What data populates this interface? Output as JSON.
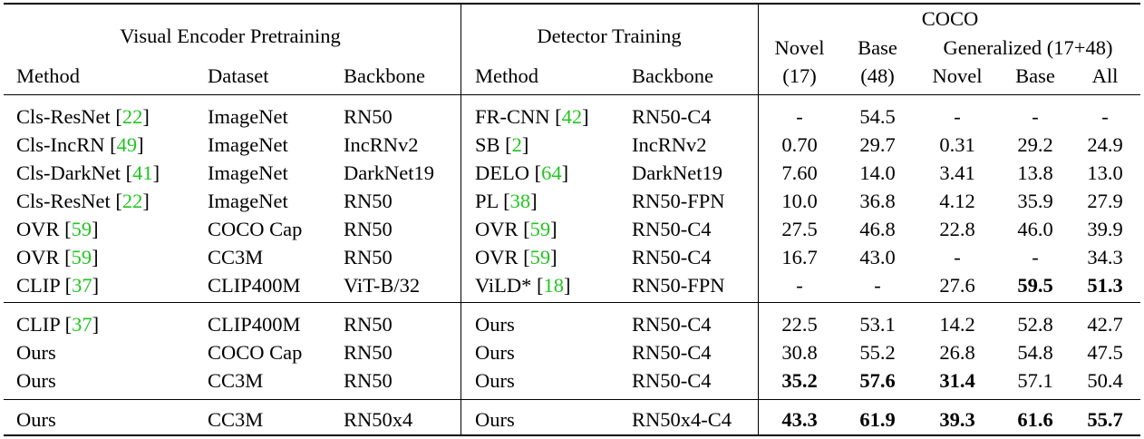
{
  "groups": {
    "pretrain": "Visual Encoder Pretraining",
    "detector": "Detector Training",
    "coco": "COCO",
    "generalized": "Generalized (17+48)"
  },
  "columns": {
    "method": "Method",
    "dataset": "Dataset",
    "backbone": "Backbone",
    "det_method": "Method",
    "det_backbone": "Backbone",
    "novel_top": "Novel",
    "novel_bottom": "(17)",
    "base_top": "Base",
    "base_bottom": "(48)",
    "gen_novel": "Novel",
    "gen_base": "Base",
    "gen_all": "All"
  },
  "rows": [
    {
      "method": "Cls-ResNet",
      "method_cite": "22",
      "dataset": "ImageNet",
      "backbone": "RN50",
      "det_method": "FR-CNN",
      "det_cite": "42",
      "det_backbone": "RN50-C4",
      "novel": "-",
      "base": "54.5",
      "g_novel": "-",
      "g_base": "-",
      "g_all": "-"
    },
    {
      "method": "Cls-IncRN",
      "method_cite": "49",
      "dataset": "ImageNet",
      "backbone": "IncRNv2",
      "det_method": "SB",
      "det_cite": "2",
      "det_backbone": "IncRNv2",
      "novel": "0.70",
      "base": "29.7",
      "g_novel": "0.31",
      "g_base": "29.2",
      "g_all": "24.9"
    },
    {
      "method": "Cls-DarkNet",
      "method_cite": "41",
      "dataset": "ImageNet",
      "backbone": "DarkNet19",
      "det_method": "DELO",
      "det_cite": "64",
      "det_backbone": "DarkNet19",
      "novel": "7.60",
      "base": "14.0",
      "g_novel": "3.41",
      "g_base": "13.8",
      "g_all": "13.0"
    },
    {
      "method": "Cls-ResNet",
      "method_cite": "22",
      "dataset": "ImageNet",
      "backbone": "RN50",
      "det_method": "PL",
      "det_cite": "38",
      "det_backbone": "RN50-FPN",
      "novel": "10.0",
      "base": "36.8",
      "g_novel": "4.12",
      "g_base": "35.9",
      "g_all": "27.9"
    },
    {
      "method": "OVR",
      "method_cite": "59",
      "dataset": "COCO Cap",
      "backbone": "RN50",
      "det_method": "OVR",
      "det_cite": "59",
      "det_backbone": "RN50-C4",
      "novel": "27.5",
      "base": "46.8",
      "g_novel": "22.8",
      "g_base": "46.0",
      "g_all": "39.9"
    },
    {
      "method": "OVR",
      "method_cite": "59",
      "dataset": "CC3M",
      "backbone": "RN50",
      "det_method": "OVR",
      "det_cite": "59",
      "det_backbone": "RN50-C4",
      "novel": "16.7",
      "base": "43.0",
      "g_novel": "-",
      "g_base": "-",
      "g_all": "34.3"
    },
    {
      "method": "CLIP",
      "method_cite": "37",
      "dataset": "CLIP400M",
      "backbone": "ViT-B/32",
      "det_method": "ViLD*",
      "det_cite": "18",
      "det_backbone": "RN50-FPN",
      "novel": "-",
      "base": "-",
      "g_novel": "27.6",
      "g_base": "59.5",
      "g_all": "51.3"
    },
    {
      "method": "CLIP",
      "method_cite": "37",
      "dataset": "CLIP400M",
      "backbone": "RN50",
      "det_method": "Ours",
      "det_cite": "",
      "det_backbone": "RN50-C4",
      "novel": "22.5",
      "base": "53.1",
      "g_novel": "14.2",
      "g_base": "52.8",
      "g_all": "42.7"
    },
    {
      "method": "Ours",
      "method_cite": "",
      "dataset": "COCO Cap",
      "backbone": "RN50",
      "det_method": "Ours",
      "det_cite": "",
      "det_backbone": "RN50-C4",
      "novel": "30.8",
      "base": "55.2",
      "g_novel": "26.8",
      "g_base": "54.8",
      "g_all": "47.5"
    },
    {
      "method": "Ours",
      "method_cite": "",
      "dataset": "CC3M",
      "backbone": "RN50",
      "det_method": "Ours",
      "det_cite": "",
      "det_backbone": "RN50-C4",
      "novel": "35.2",
      "base": "57.6",
      "g_novel": "31.4",
      "g_base": "57.1",
      "g_all": "50.4"
    },
    {
      "method": "Ours",
      "method_cite": "",
      "dataset": "CC3M",
      "backbone": "RN50x4",
      "det_method": "Ours",
      "det_cite": "",
      "det_backbone": "RN50x4-C4",
      "novel": "43.3",
      "base": "61.9",
      "g_novel": "39.3",
      "g_base": "61.6",
      "g_all": "55.7"
    }
  ],
  "bold": [
    [
      6,
      "g_base"
    ],
    [
      6,
      "g_all"
    ],
    [
      9,
      "novel"
    ],
    [
      9,
      "base"
    ],
    [
      9,
      "g_novel"
    ],
    [
      10,
      "novel"
    ],
    [
      10,
      "base"
    ],
    [
      10,
      "g_novel"
    ],
    [
      10,
      "g_base"
    ],
    [
      10,
      "g_all"
    ]
  ],
  "colors": {
    "citation": "#22c522",
    "text": "#000000"
  }
}
